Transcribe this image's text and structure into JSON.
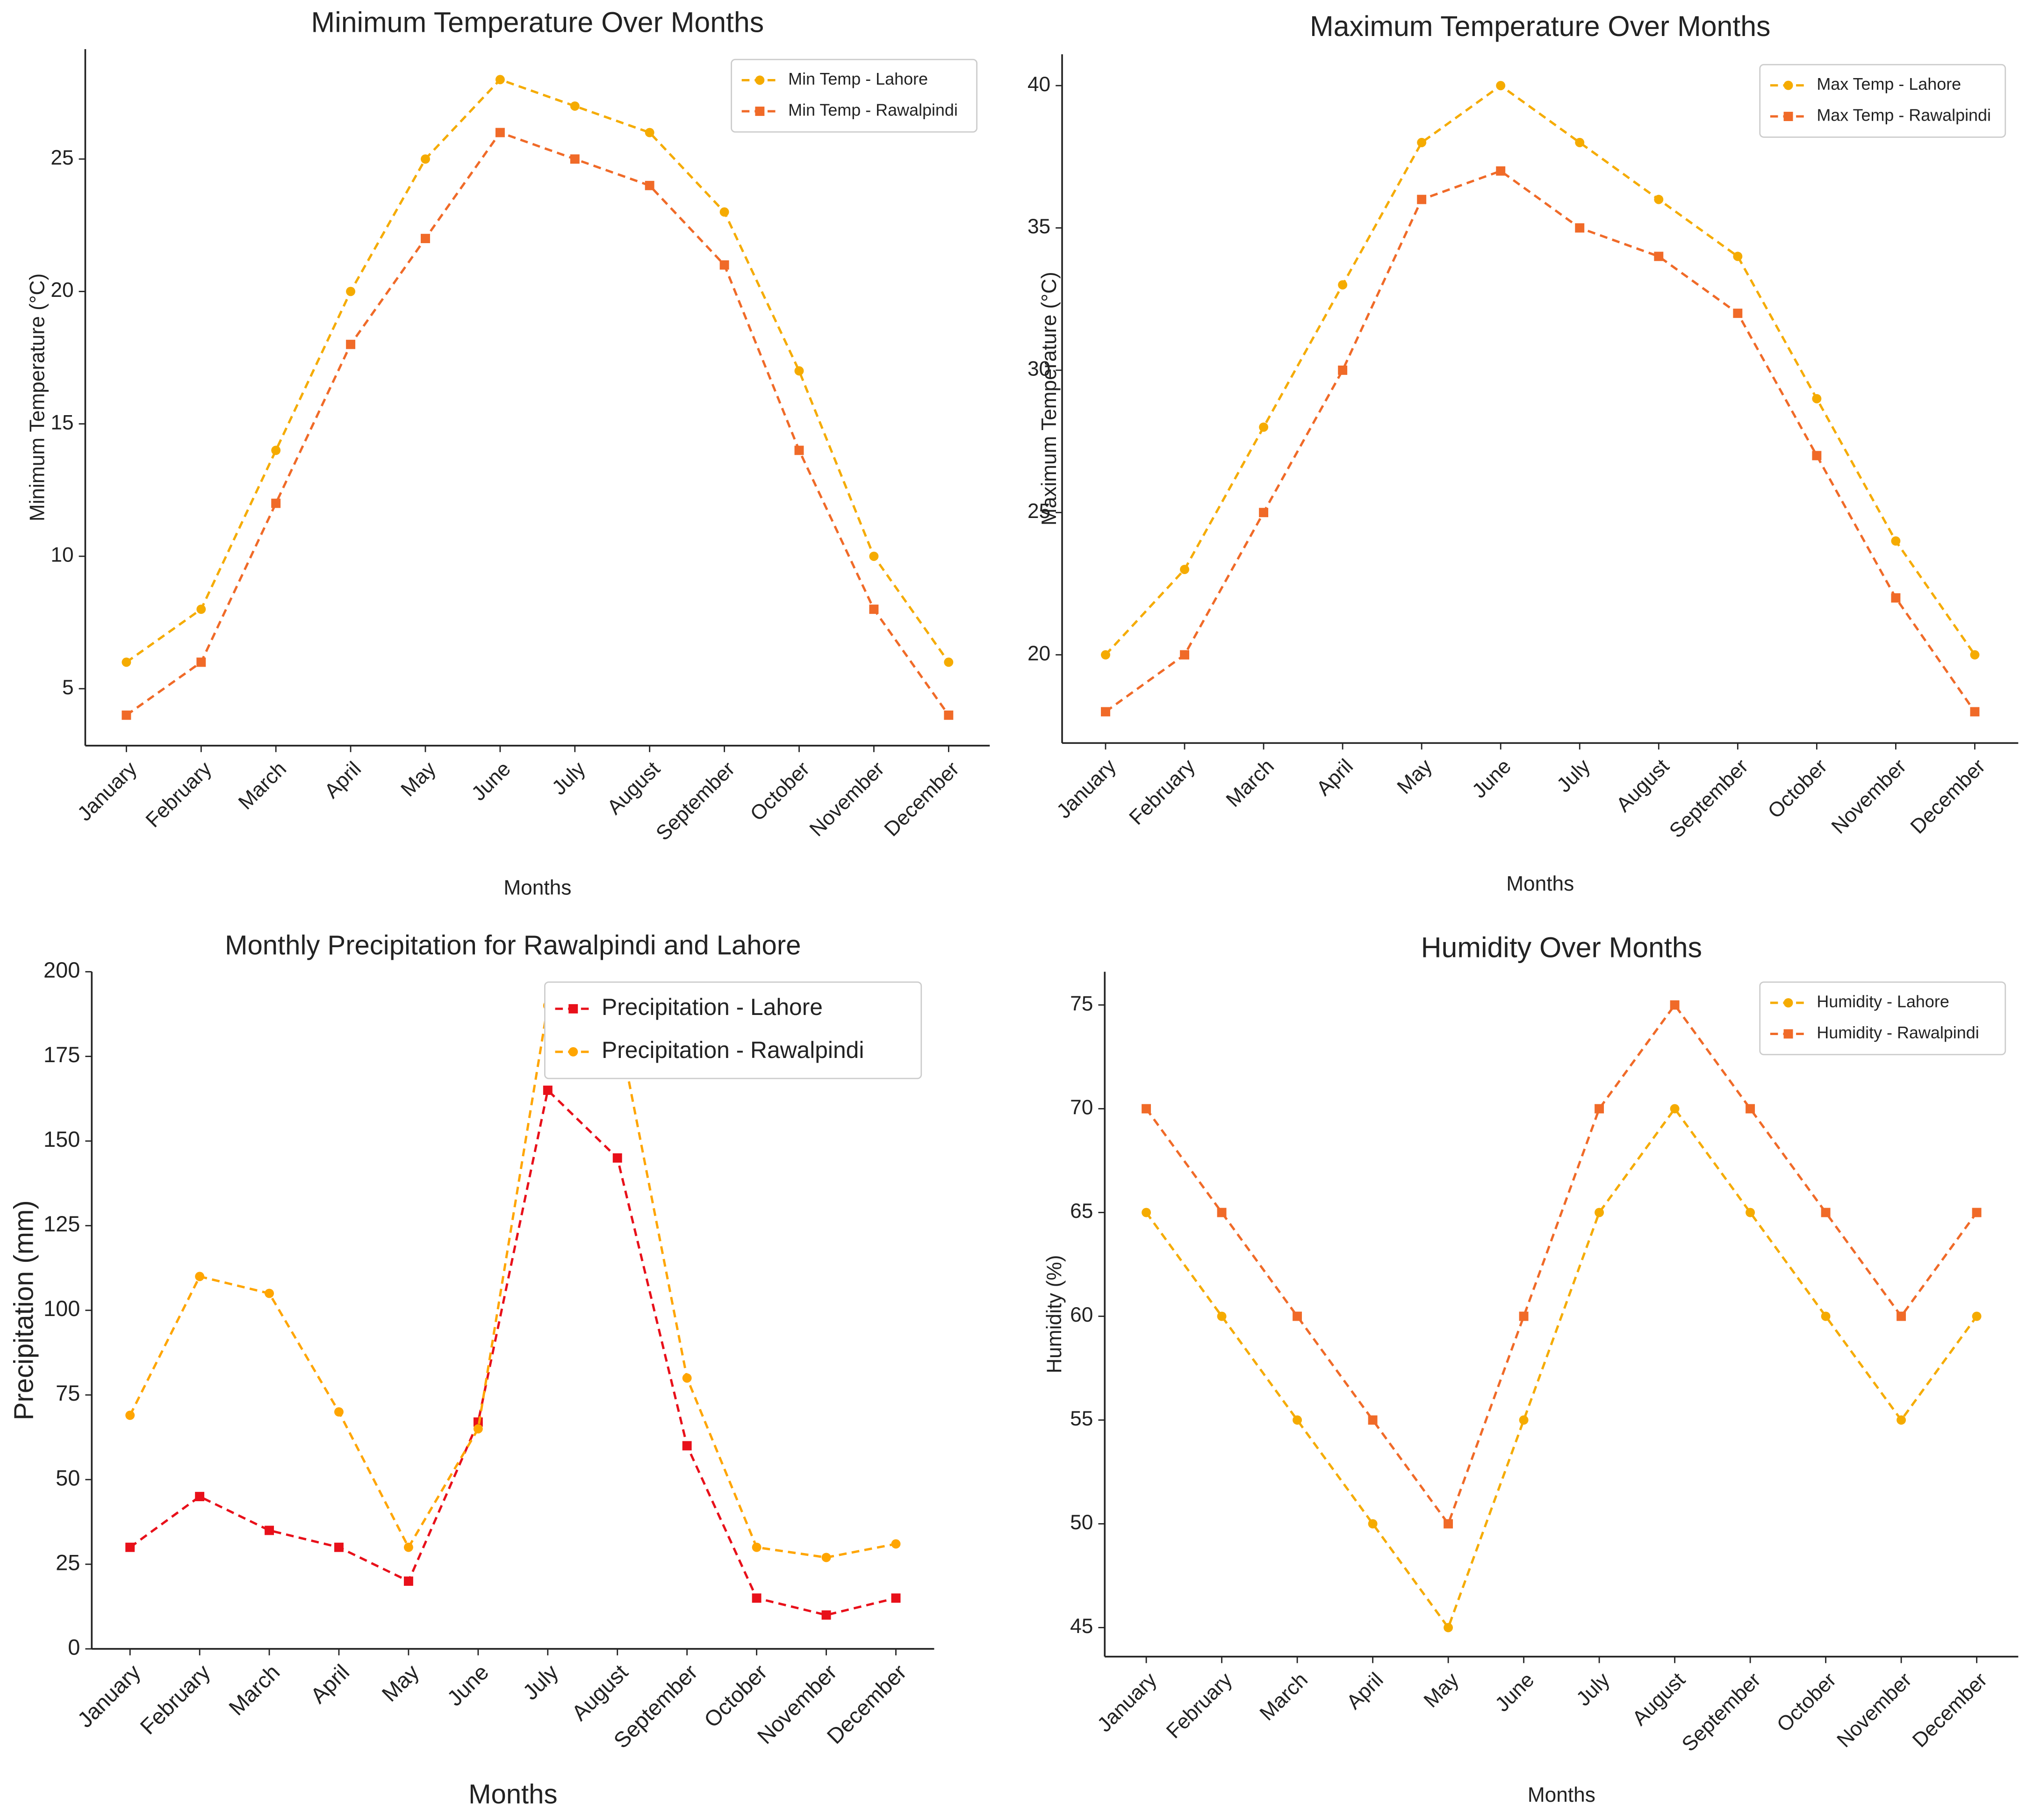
{
  "chart_data": [
    {
      "type": "line",
      "title": "Minimum Temperature Over Months",
      "xlabel": "Months",
      "ylabel": "Minimum Temperature (°C)",
      "categories": [
        "January",
        "February",
        "March",
        "April",
        "May",
        "June",
        "July",
        "August",
        "September",
        "October",
        "November",
        "December"
      ],
      "series": [
        {
          "name": "Min Temp - Lahore",
          "color": "#f5ab00",
          "marker": "circle",
          "values": [
            6,
            8,
            14,
            20,
            25,
            28,
            27,
            26,
            23,
            17,
            10,
            6
          ]
        },
        {
          "name": "Min Temp - Rawalpindi",
          "color": "#f06a28",
          "marker": "square",
          "values": [
            4,
            6,
            12,
            18,
            22,
            26,
            25,
            24,
            21,
            14,
            8,
            4
          ]
        }
      ],
      "ylim": [
        2.85,
        29.15
      ],
      "yticks": [
        5,
        10,
        15,
        20,
        25
      ],
      "legend": "upper right"
    },
    {
      "type": "line",
      "title": "Maximum Temperature Over Months",
      "xlabel": "Months",
      "ylabel": "Maximum Temperature (°C)",
      "categories": [
        "January",
        "February",
        "March",
        "April",
        "May",
        "June",
        "July",
        "August",
        "September",
        "October",
        "November",
        "December"
      ],
      "series": [
        {
          "name": "Max Temp - Lahore",
          "color": "#f5ab00",
          "marker": "circle",
          "values": [
            20,
            23,
            28,
            33,
            38,
            40,
            38,
            36,
            34,
            29,
            24,
            20
          ]
        },
        {
          "name": "Max Temp - Rawalpindi",
          "color": "#f06a28",
          "marker": "square",
          "values": [
            18,
            20,
            25,
            30,
            36,
            37,
            35,
            34,
            32,
            27,
            22,
            18
          ]
        }
      ],
      "ylim": [
        16.9,
        41.1
      ],
      "yticks": [
        20,
        25,
        30,
        35,
        40
      ],
      "legend": "upper right"
    },
    {
      "type": "line",
      "title": "Monthly Precipitation for Rawalpindi and Lahore",
      "xlabel": "Months",
      "ylabel": "Precipitation (mm)",
      "categories": [
        "January",
        "February",
        "March",
        "April",
        "May",
        "June",
        "July",
        "August",
        "September",
        "October",
        "November",
        "December"
      ],
      "series": [
        {
          "name": "Precipitation - Lahore",
          "color": "#e8101a",
          "marker": "square",
          "values": [
            30,
            45,
            35,
            30,
            20,
            67,
            165,
            145,
            60,
            15,
            10,
            15
          ]
        },
        {
          "name": "Precipitation - Rawalpindi",
          "color": "#ffa500",
          "marker": "circle",
          "values": [
            69,
            110,
            105,
            70,
            30,
            65,
            190,
            185,
            80,
            30,
            27,
            31
          ]
        }
      ],
      "ylim": [
        0,
        200
      ],
      "yticks": [
        0,
        25,
        50,
        75,
        100,
        125,
        150,
        175,
        200
      ],
      "legend": "upper right"
    },
    {
      "type": "line",
      "title": "Humidity Over Months",
      "xlabel": "Months",
      "ylabel": "Humidity (%)",
      "categories": [
        "January",
        "February",
        "March",
        "April",
        "May",
        "June",
        "July",
        "August",
        "September",
        "October",
        "November",
        "December"
      ],
      "series": [
        {
          "name": "Humidity - Lahore",
          "color": "#f5ab00",
          "marker": "circle",
          "values": [
            65,
            60,
            55,
            50,
            45,
            55,
            65,
            70,
            65,
            60,
            55,
            60
          ]
        },
        {
          "name": "Humidity - Rawalpindi",
          "color": "#f06a28",
          "marker": "square",
          "values": [
            70,
            65,
            60,
            55,
            50,
            60,
            70,
            75,
            70,
            65,
            60,
            65
          ]
        }
      ],
      "ylim": [
        43.6,
        76.6
      ],
      "yticks": [
        45,
        50,
        55,
        60,
        65,
        70,
        75
      ],
      "legend": "upper right"
    }
  ]
}
